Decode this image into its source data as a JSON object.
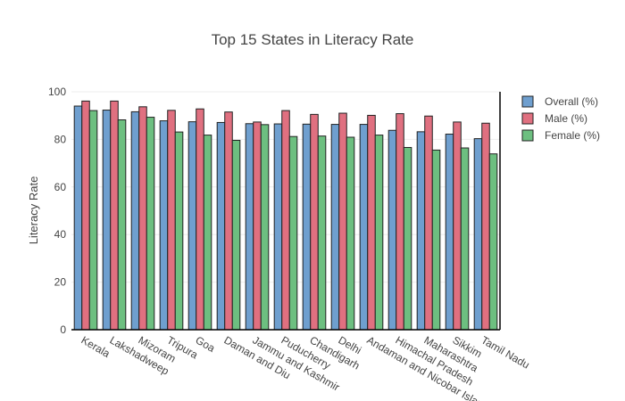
{
  "chart_data": {
    "type": "bar",
    "title": "Top 15 States in Literacy Rate",
    "xlabel": "",
    "ylabel": "Literacy Rate",
    "ylim": [
      0,
      100
    ],
    "yticks": [
      "0",
      "20",
      "40",
      "60",
      "80",
      "100"
    ],
    "grid": true,
    "legend_position": "top-right",
    "categories": [
      "Kerala",
      "Lakshadweep",
      "Mizoram",
      "Tripura",
      "Goa",
      "Daman and Diu",
      "Jammu and Kashmir",
      "Puducherry",
      "Chandigarh",
      "Delhi",
      "Andaman and Nicobar Islands",
      "Himachal Pradesh",
      "Maharashtra",
      "Sikkim",
      "Tamil Nadu"
    ],
    "series": [
      {
        "name": "Overall (%)",
        "color": "#6f9fcf",
        "values": [
          94.0,
          92.3,
          91.6,
          87.8,
          87.4,
          87.1,
          86.6,
          86.5,
          86.4,
          86.3,
          86.3,
          83.8,
          83.2,
          82.2,
          80.3
        ]
      },
      {
        "name": "Male (%)",
        "color": "#e07080",
        "values": [
          96.1,
          96.1,
          93.7,
          92.2,
          92.8,
          91.5,
          87.3,
          92.1,
          90.5,
          91.0,
          90.1,
          90.8,
          89.8,
          87.3,
          86.8
        ]
      },
      {
        "name": "Female (%)",
        "color": "#6dbf80",
        "values": [
          92.1,
          88.2,
          89.3,
          83.1,
          81.8,
          79.6,
          86.2,
          81.2,
          81.4,
          80.9,
          81.8,
          76.6,
          75.5,
          76.4,
          73.9
        ]
      }
    ]
  }
}
